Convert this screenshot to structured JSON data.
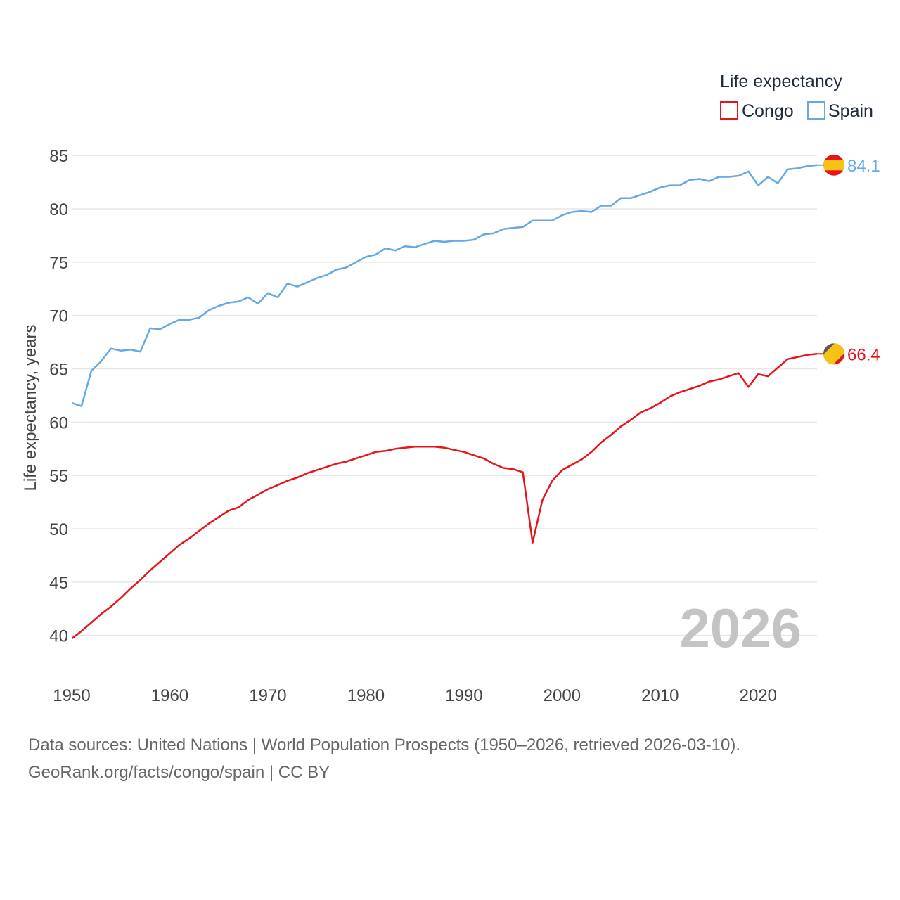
{
  "chart_data": {
    "type": "line",
    "legend": {
      "title": "Life expectancy",
      "position": "top-right"
    },
    "ylabel": "Life expectancy, years",
    "xlabel": "",
    "ylim": [
      38,
      86
    ],
    "xlim": [
      1950,
      2026
    ],
    "yticks": [
      40,
      45,
      50,
      55,
      60,
      65,
      70,
      75,
      80,
      85
    ],
    "xticks": [
      1950,
      1960,
      1970,
      1980,
      1990,
      2000,
      2010,
      2020
    ],
    "grid": true,
    "year_label": "2026",
    "x": [
      1950,
      1951,
      1952,
      1953,
      1954,
      1955,
      1956,
      1957,
      1958,
      1959,
      1960,
      1961,
      1962,
      1963,
      1964,
      1965,
      1966,
      1967,
      1968,
      1969,
      1970,
      1971,
      1972,
      1973,
      1974,
      1975,
      1976,
      1977,
      1978,
      1979,
      1980,
      1981,
      1982,
      1983,
      1984,
      1985,
      1986,
      1987,
      1988,
      1989,
      1990,
      1991,
      1992,
      1993,
      1994,
      1995,
      1996,
      1997,
      1998,
      1999,
      2000,
      2001,
      2002,
      2003,
      2004,
      2005,
      2006,
      2007,
      2008,
      2009,
      2010,
      2011,
      2012,
      2013,
      2014,
      2015,
      2016,
      2017,
      2018,
      2019,
      2020,
      2021,
      2022,
      2023,
      2024,
      2025,
      2026
    ],
    "series": [
      {
        "name": "Congo",
        "color": "#e8141c",
        "end_label": "66.4",
        "values": [
          39.7,
          40.4,
          41.2,
          42.0,
          42.7,
          43.5,
          44.4,
          45.2,
          46.1,
          46.9,
          47.7,
          48.5,
          49.1,
          49.8,
          50.5,
          51.1,
          51.7,
          52.0,
          52.7,
          53.2,
          53.7,
          54.1,
          54.5,
          54.8,
          55.2,
          55.5,
          55.8,
          56.1,
          56.3,
          56.6,
          56.9,
          57.2,
          57.3,
          57.5,
          57.6,
          57.7,
          57.7,
          57.7,
          57.6,
          57.4,
          57.2,
          56.9,
          56.6,
          56.1,
          55.7,
          55.6,
          55.3,
          48.7,
          52.7,
          54.5,
          55.5,
          56.0,
          56.5,
          57.2,
          58.1,
          58.8,
          59.6,
          60.2,
          60.9,
          61.3,
          61.8,
          62.4,
          62.8,
          63.1,
          63.4,
          63.8,
          64.0,
          64.3,
          64.6,
          63.3,
          64.5,
          64.3,
          65.1,
          65.9,
          66.1,
          66.3,
          66.4
        ]
      },
      {
        "name": "Spain",
        "color": "#64a8e4",
        "end_label": "84.1",
        "values": [
          61.8,
          61.5,
          64.8,
          65.7,
          66.9,
          66.7,
          66.8,
          66.6,
          68.8,
          68.7,
          69.2,
          69.6,
          69.6,
          69.8,
          70.5,
          70.9,
          71.2,
          71.3,
          71.7,
          71.1,
          72.1,
          71.7,
          73.0,
          72.7,
          73.1,
          73.5,
          73.8,
          74.3,
          74.5,
          75.0,
          75.5,
          75.7,
          76.3,
          76.1,
          76.5,
          76.4,
          76.7,
          77.0,
          76.9,
          77.0,
          77.0,
          77.1,
          77.6,
          77.7,
          78.1,
          78.2,
          78.3,
          78.9,
          78.9,
          78.9,
          79.4,
          79.7,
          79.8,
          79.7,
          80.3,
          80.3,
          81.0,
          81.0,
          81.3,
          81.6,
          82.0,
          82.2,
          82.2,
          82.7,
          82.8,
          82.6,
          83.0,
          83.0,
          83.1,
          83.5,
          82.2,
          83.0,
          82.4,
          83.7,
          83.8,
          84.0,
          84.1
        ]
      }
    ]
  },
  "source": {
    "line1": "Data sources: United Nations | World Population Prospects (1950–2026, retrieved 2026-03-10).",
    "line2": "GeoRank.org/facts/congo/spain | CC BY"
  },
  "flags": {
    "congo": "congo-flag-icon",
    "spain": "spain-flag-icon"
  }
}
